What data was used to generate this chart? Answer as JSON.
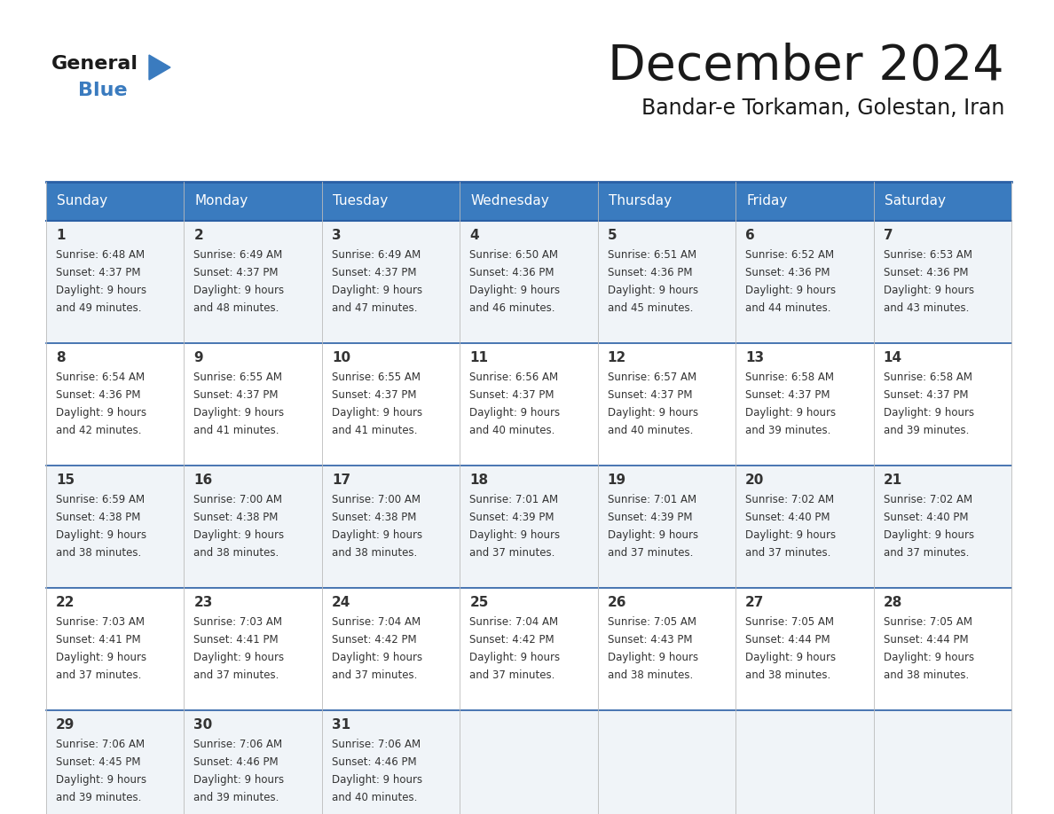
{
  "title": "December 2024",
  "subtitle": "Bandar-e Torkaman, Golestan, Iran",
  "days_of_week": [
    "Sunday",
    "Monday",
    "Tuesday",
    "Wednesday",
    "Thursday",
    "Friday",
    "Saturday"
  ],
  "header_bg": "#3a7bbf",
  "header_text": "#ffffff",
  "row_bg_even": "#f0f4f8",
  "row_bg_odd": "#ffffff",
  "cell_text_color": "#333333",
  "border_color": "#2a5fa5",
  "title_color": "#1a1a1a",
  "subtitle_color": "#1a1a1a",
  "logo_general_color": "#1a1a1a",
  "logo_blue_color": "#3a7bbf",
  "calendar": [
    [
      {
        "day": 1,
        "sunrise": "6:48 AM",
        "sunset": "4:37 PM",
        "daylight": "9 hours",
        "daylight2": "and 49 minutes."
      },
      {
        "day": 2,
        "sunrise": "6:49 AM",
        "sunset": "4:37 PM",
        "daylight": "9 hours",
        "daylight2": "and 48 minutes."
      },
      {
        "day": 3,
        "sunrise": "6:49 AM",
        "sunset": "4:37 PM",
        "daylight": "9 hours",
        "daylight2": "and 47 minutes."
      },
      {
        "day": 4,
        "sunrise": "6:50 AM",
        "sunset": "4:36 PM",
        "daylight": "9 hours",
        "daylight2": "and 46 minutes."
      },
      {
        "day": 5,
        "sunrise": "6:51 AM",
        "sunset": "4:36 PM",
        "daylight": "9 hours",
        "daylight2": "and 45 minutes."
      },
      {
        "day": 6,
        "sunrise": "6:52 AM",
        "sunset": "4:36 PM",
        "daylight": "9 hours",
        "daylight2": "and 44 minutes."
      },
      {
        "day": 7,
        "sunrise": "6:53 AM",
        "sunset": "4:36 PM",
        "daylight": "9 hours",
        "daylight2": "and 43 minutes."
      }
    ],
    [
      {
        "day": 8,
        "sunrise": "6:54 AM",
        "sunset": "4:36 PM",
        "daylight": "9 hours",
        "daylight2": "and 42 minutes."
      },
      {
        "day": 9,
        "sunrise": "6:55 AM",
        "sunset": "4:37 PM",
        "daylight": "9 hours",
        "daylight2": "and 41 minutes."
      },
      {
        "day": 10,
        "sunrise": "6:55 AM",
        "sunset": "4:37 PM",
        "daylight": "9 hours",
        "daylight2": "and 41 minutes."
      },
      {
        "day": 11,
        "sunrise": "6:56 AM",
        "sunset": "4:37 PM",
        "daylight": "9 hours",
        "daylight2": "and 40 minutes."
      },
      {
        "day": 12,
        "sunrise": "6:57 AM",
        "sunset": "4:37 PM",
        "daylight": "9 hours",
        "daylight2": "and 40 minutes."
      },
      {
        "day": 13,
        "sunrise": "6:58 AM",
        "sunset": "4:37 PM",
        "daylight": "9 hours",
        "daylight2": "and 39 minutes."
      },
      {
        "day": 14,
        "sunrise": "6:58 AM",
        "sunset": "4:37 PM",
        "daylight": "9 hours",
        "daylight2": "and 39 minutes."
      }
    ],
    [
      {
        "day": 15,
        "sunrise": "6:59 AM",
        "sunset": "4:38 PM",
        "daylight": "9 hours",
        "daylight2": "and 38 minutes."
      },
      {
        "day": 16,
        "sunrise": "7:00 AM",
        "sunset": "4:38 PM",
        "daylight": "9 hours",
        "daylight2": "and 38 minutes."
      },
      {
        "day": 17,
        "sunrise": "7:00 AM",
        "sunset": "4:38 PM",
        "daylight": "9 hours",
        "daylight2": "and 38 minutes."
      },
      {
        "day": 18,
        "sunrise": "7:01 AM",
        "sunset": "4:39 PM",
        "daylight": "9 hours",
        "daylight2": "and 37 minutes."
      },
      {
        "day": 19,
        "sunrise": "7:01 AM",
        "sunset": "4:39 PM",
        "daylight": "9 hours",
        "daylight2": "and 37 minutes."
      },
      {
        "day": 20,
        "sunrise": "7:02 AM",
        "sunset": "4:40 PM",
        "daylight": "9 hours",
        "daylight2": "and 37 minutes."
      },
      {
        "day": 21,
        "sunrise": "7:02 AM",
        "sunset": "4:40 PM",
        "daylight": "9 hours",
        "daylight2": "and 37 minutes."
      }
    ],
    [
      {
        "day": 22,
        "sunrise": "7:03 AM",
        "sunset": "4:41 PM",
        "daylight": "9 hours",
        "daylight2": "and 37 minutes."
      },
      {
        "day": 23,
        "sunrise": "7:03 AM",
        "sunset": "4:41 PM",
        "daylight": "9 hours",
        "daylight2": "and 37 minutes."
      },
      {
        "day": 24,
        "sunrise": "7:04 AM",
        "sunset": "4:42 PM",
        "daylight": "9 hours",
        "daylight2": "and 37 minutes."
      },
      {
        "day": 25,
        "sunrise": "7:04 AM",
        "sunset": "4:42 PM",
        "daylight": "9 hours",
        "daylight2": "and 37 minutes."
      },
      {
        "day": 26,
        "sunrise": "7:05 AM",
        "sunset": "4:43 PM",
        "daylight": "9 hours",
        "daylight2": "and 38 minutes."
      },
      {
        "day": 27,
        "sunrise": "7:05 AM",
        "sunset": "4:44 PM",
        "daylight": "9 hours",
        "daylight2": "and 38 minutes."
      },
      {
        "day": 28,
        "sunrise": "7:05 AM",
        "sunset": "4:44 PM",
        "daylight": "9 hours",
        "daylight2": "and 38 minutes."
      }
    ],
    [
      {
        "day": 29,
        "sunrise": "7:06 AM",
        "sunset": "4:45 PM",
        "daylight": "9 hours",
        "daylight2": "and 39 minutes."
      },
      {
        "day": 30,
        "sunrise": "7:06 AM",
        "sunset": "4:46 PM",
        "daylight": "9 hours",
        "daylight2": "and 39 minutes."
      },
      {
        "day": 31,
        "sunrise": "7:06 AM",
        "sunset": "4:46 PM",
        "daylight": "9 hours",
        "daylight2": "and 40 minutes."
      },
      null,
      null,
      null,
      null
    ]
  ]
}
